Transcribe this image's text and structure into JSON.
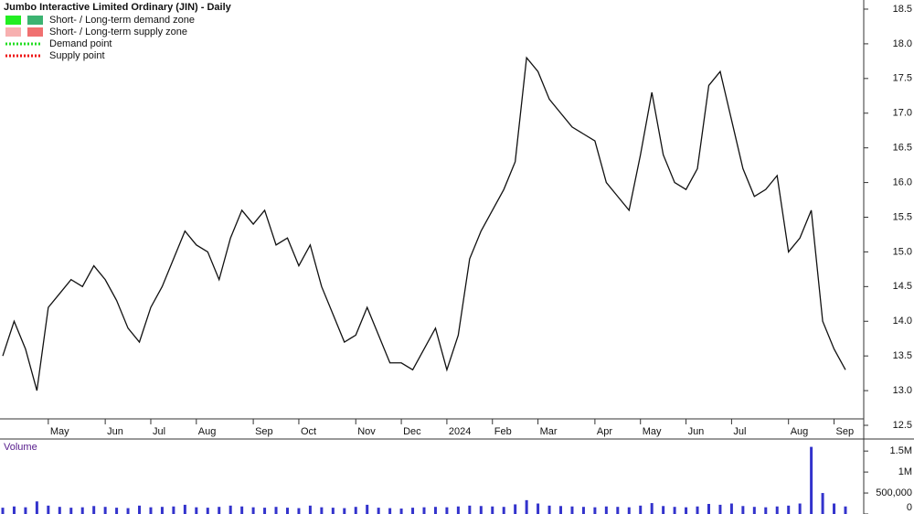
{
  "chart_data": [
    {
      "type": "line",
      "title": "Jumbo Interactive Limited Ordinary (JIN) - Daily",
      "legend": [
        {
          "label": "Short- / Long-term demand zone",
          "colors": [
            "#22ee22",
            "#3cb371"
          ],
          "style": "box"
        },
        {
          "label": "Short- / Long-term supply zone",
          "colors": [
            "#f7b0b0",
            "#f07070"
          ],
          "style": "box"
        },
        {
          "label": "Demand point",
          "colors": [
            "#22dd22"
          ],
          "style": "dotted"
        },
        {
          "label": "Supply point",
          "colors": [
            "#ee1111"
          ],
          "style": "dotted"
        }
      ],
      "categories": [
        null,
        null,
        null,
        null,
        "May",
        null,
        null,
        null,
        null,
        "Jun",
        null,
        null,
        null,
        "Jul",
        null,
        null,
        null,
        "Aug",
        null,
        null,
        null,
        null,
        "Sep",
        null,
        null,
        null,
        "Oct",
        null,
        null,
        null,
        null,
        "Nov",
        null,
        null,
        null,
        "Dec",
        null,
        null,
        null,
        "2024",
        null,
        null,
        null,
        "Feb",
        null,
        null,
        null,
        "Mar",
        null,
        null,
        null,
        null,
        "Apr",
        null,
        null,
        null,
        "May",
        null,
        null,
        null,
        "Jun",
        null,
        null,
        null,
        "Jul",
        null,
        null,
        null,
        null,
        "Aug",
        null,
        null,
        null,
        "Sep",
        null
      ],
      "series": [
        {
          "name": "Close",
          "color": "#111111",
          "values": [
            13.5,
            14.0,
            13.6,
            13.0,
            14.2,
            14.4,
            14.6,
            14.5,
            14.8,
            14.6,
            14.3,
            13.9,
            13.7,
            14.2,
            14.5,
            14.9,
            15.3,
            15.1,
            15.0,
            14.6,
            15.2,
            15.6,
            15.4,
            15.6,
            15.1,
            15.2,
            14.8,
            15.1,
            14.5,
            14.1,
            13.7,
            13.8,
            14.2,
            13.8,
            13.4,
            13.4,
            13.3,
            13.6,
            13.9,
            13.3,
            13.8,
            14.9,
            15.3,
            15.6,
            15.9,
            16.3,
            17.8,
            17.6,
            17.2,
            17.0,
            16.8,
            16.7,
            16.6,
            16.0,
            15.8,
            15.6,
            16.4,
            17.3,
            16.4,
            16.0,
            15.9,
            16.2,
            17.4,
            17.6,
            16.9,
            16.2,
            15.8,
            15.9,
            16.1,
            15.0,
            15.2,
            15.6,
            14.0,
            13.6,
            13.3
          ]
        }
      ],
      "ylim": [
        12.4,
        18.6
      ],
      "yticks": [
        12.5,
        {
          "value": 13,
          "label": "13.0"
        },
        13.5,
        {
          "value": 14,
          "label": "14.0"
        },
        14.5,
        {
          "value": 15,
          "label": "15.0"
        },
        15.5,
        {
          "value": 16,
          "label": "16.0"
        },
        16.5,
        {
          "value": 17,
          "label": "17.0"
        },
        17.5,
        {
          "value": 18,
          "label": "18.0"
        },
        18.5
      ]
    },
    {
      "type": "bar",
      "title": "Volume",
      "color": "#3333cc",
      "values": [
        150000,
        180000,
        160000,
        300000,
        200000,
        170000,
        150000,
        160000,
        190000,
        170000,
        150000,
        140000,
        200000,
        160000,
        170000,
        180000,
        220000,
        160000,
        150000,
        170000,
        200000,
        180000,
        160000,
        150000,
        170000,
        150000,
        140000,
        200000,
        160000,
        150000,
        140000,
        170000,
        220000,
        150000,
        140000,
        130000,
        150000,
        160000,
        170000,
        160000,
        180000,
        200000,
        190000,
        180000,
        170000,
        230000,
        330000,
        250000,
        200000,
        190000,
        180000,
        170000,
        160000,
        180000,
        170000,
        160000,
        200000,
        260000,
        190000,
        170000,
        160000,
        180000,
        240000,
        220000,
        250000,
        190000,
        170000,
        160000,
        180000,
        200000,
        250000,
        1600000,
        500000,
        250000,
        180000
      ],
      "ylim": [
        0,
        1700000
      ],
      "yticks": [
        {
          "value": 1500000,
          "label": "1.5M"
        },
        {
          "value": 1000000,
          "label": "1M"
        },
        {
          "value": 500000,
          "label": "500,000"
        },
        0
      ]
    }
  ]
}
